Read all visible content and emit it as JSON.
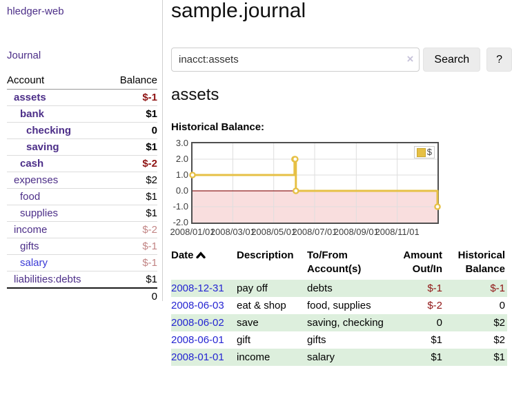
{
  "sidebar": {
    "brand": "hledger-web",
    "nav": {
      "journal_label": "Journal"
    },
    "accounts_table": {
      "account_header": "Account",
      "balance_header": "Balance",
      "rows": [
        {
          "name": "assets",
          "depth": 1,
          "emph": "bold",
          "balance": "$-1",
          "tone": "neg",
          "link": "purple"
        },
        {
          "name": "bank",
          "depth": 2,
          "emph": "bold",
          "balance": "$1",
          "tone": "pos",
          "link": "purple"
        },
        {
          "name": "checking",
          "depth": 3,
          "emph": "bold",
          "balance": "0",
          "tone": "pos",
          "link": "purple"
        },
        {
          "name": "saving",
          "depth": 3,
          "emph": "bold",
          "balance": "$1",
          "tone": "pos",
          "link": "purple"
        },
        {
          "name": "cash",
          "depth": 2,
          "emph": "bold",
          "balance": "$-2",
          "tone": "neg",
          "link": "purple"
        },
        {
          "name": "expenses",
          "depth": 1,
          "emph": "normal",
          "balance": "$2",
          "tone": "pos",
          "link": "purple"
        },
        {
          "name": "food",
          "depth": 2,
          "emph": "normal",
          "balance": "$1",
          "tone": "pos",
          "link": "purple"
        },
        {
          "name": "supplies",
          "depth": 2,
          "emph": "normal",
          "balance": "$1",
          "tone": "pos",
          "link": "purple"
        },
        {
          "name": "income",
          "depth": 1,
          "emph": "normal",
          "balance": "$-2",
          "tone": "soft-neg",
          "link": "purple"
        },
        {
          "name": "gifts",
          "depth": 2,
          "emph": "normal",
          "balance": "$-1",
          "tone": "soft-neg",
          "link": "purple"
        },
        {
          "name": "salary",
          "depth": 2,
          "emph": "normal",
          "balance": "$-1",
          "tone": "soft-neg",
          "link": "blue"
        },
        {
          "name": "liabilities:debts",
          "depth": 1,
          "emph": "normal",
          "balance": "$1",
          "tone": "pos",
          "link": "purple"
        }
      ],
      "total": "0"
    }
  },
  "header": {
    "title": "sample.journal"
  },
  "search": {
    "query": "inacct:assets",
    "clear_icon": "×",
    "search_button": "Search",
    "help_button": "?"
  },
  "account_page": {
    "heading": "assets"
  },
  "chart_data": {
    "type": "line",
    "step": true,
    "title": "Historical Balance:",
    "xlabel": "",
    "ylabel": "",
    "x_range": [
      "2008-01-01",
      "2008-12-31"
    ],
    "ylim": [
      -2,
      3
    ],
    "grid": true,
    "legend_position": "top-right",
    "x_ticks": [
      {
        "date": "2008-01-01",
        "label": "2008/01/01"
      },
      {
        "date": "2008-03-01",
        "label": "2008/03/01"
      },
      {
        "date": "2008-05-01",
        "label": "2008/05/01"
      },
      {
        "date": "2008-07-01",
        "label": "2008/07/01"
      },
      {
        "date": "2008-09-01",
        "label": "2008/09/01"
      },
      {
        "date": "2008-11-01",
        "label": "2008/11/01"
      }
    ],
    "y_ticks": [
      {
        "value": 3,
        "label": "3.0"
      },
      {
        "value": 2,
        "label": "2.0"
      },
      {
        "value": 1,
        "label": "1.0"
      },
      {
        "value": 0,
        "label": "0.0"
      },
      {
        "value": -1,
        "label": "-1.0"
      },
      {
        "value": -2,
        "label": "-2.0"
      }
    ],
    "series": [
      {
        "name": "$",
        "points": [
          {
            "x": "2008-01-01",
            "y": 1
          },
          {
            "x": "2008-06-01",
            "y": 2
          },
          {
            "x": "2008-06-02",
            "y": 2
          },
          {
            "x": "2008-06-03",
            "y": 0
          },
          {
            "x": "2008-12-31",
            "y": -1
          }
        ]
      }
    ],
    "colors": {
      "line": "#e6c045",
      "below_zero_fill": "#f9dede",
      "zero_line": "#8f1f1f",
      "grid": "#dedede",
      "border": "#4f4f4f",
      "axis_text": "#3d3d3d"
    }
  },
  "register": {
    "columns": {
      "date": "Date",
      "description": "Description",
      "tofrom": "To/From Account(s)",
      "amount": "Amount Out/In",
      "balance": "Historical Balance"
    },
    "sort": {
      "column": "date",
      "direction": "ascending",
      "icon": "caret-up-icon"
    },
    "rows": [
      {
        "date": "2008-12-31",
        "description": "pay off",
        "accounts": "debts",
        "amount": "$-1",
        "amount_tone": "neg",
        "balance": "$-1",
        "balance_tone": "neg"
      },
      {
        "date": "2008-06-03",
        "description": "eat & shop",
        "accounts": "food, supplies",
        "amount": "$-2",
        "amount_tone": "neg",
        "balance": "0",
        "balance_tone": "pos"
      },
      {
        "date": "2008-06-02",
        "description": "save",
        "accounts": "saving, checking",
        "amount": "0",
        "amount_tone": "pos",
        "balance": "$2",
        "balance_tone": "pos"
      },
      {
        "date": "2008-06-01",
        "description": "gift",
        "accounts": "gifts",
        "amount": "$1",
        "amount_tone": "pos",
        "balance": "$2",
        "balance_tone": "pos"
      },
      {
        "date": "2008-01-01",
        "description": "income",
        "accounts": "salary",
        "amount": "$1",
        "amount_tone": "pos",
        "balance": "$1",
        "balance_tone": "pos"
      }
    ]
  }
}
